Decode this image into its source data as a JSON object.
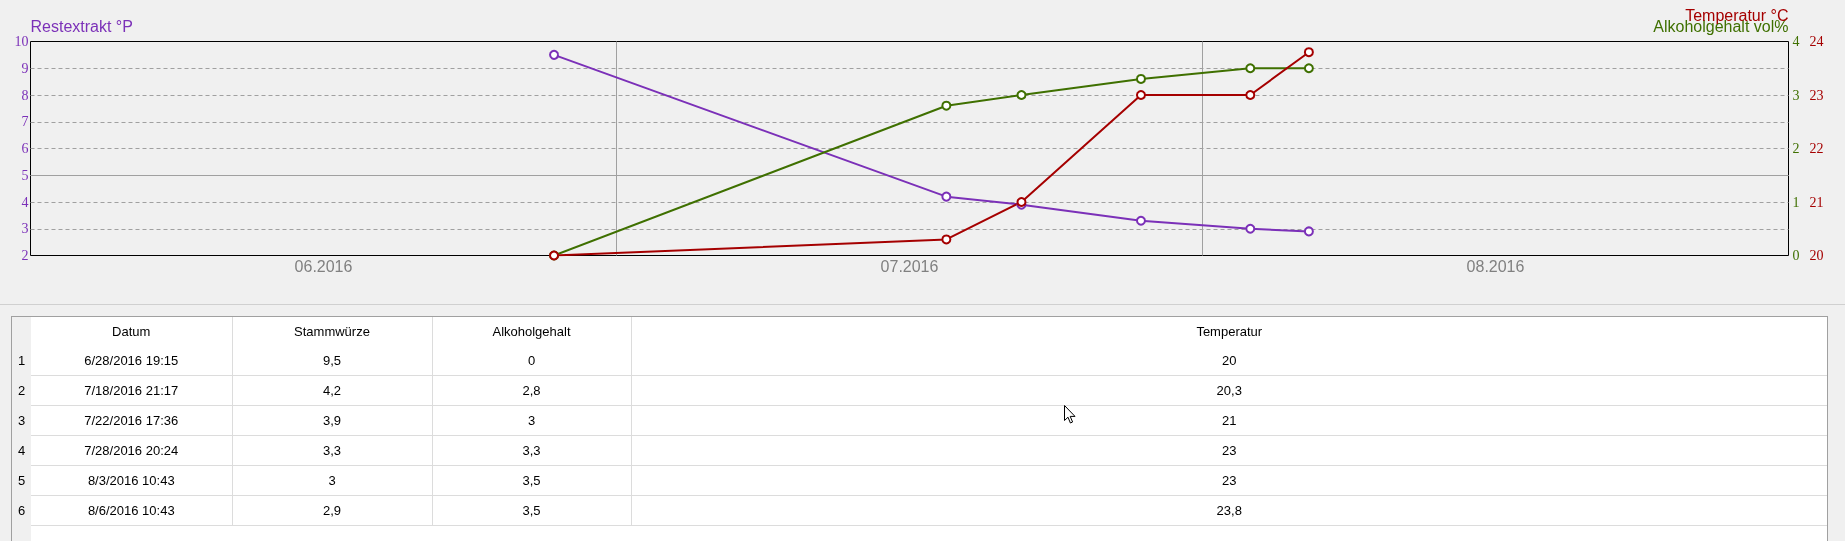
{
  "chart_data": {
    "type": "line",
    "x": [
      "2016-06-28T19:15",
      "2016-07-18T21:17",
      "2016-07-22T17:36",
      "2016-07-28T20:24",
      "2016-08-03T10:43",
      "2016-08-06T10:43"
    ],
    "xlabel": "Datum",
    "ylabel": "Restextrakt °P",
    "y2label": "Alkoholgehalt vol%",
    "y3label": "Temperatur °C",
    "xlim": [
      "2016-06-02",
      "2016-08-31"
    ],
    "xticks": [
      {
        "value": "2016-06-17",
        "label": "06.2016"
      },
      {
        "value": "2016-07-17",
        "label": "07.2016"
      },
      {
        "value": "2016-08-16",
        "label": "08.2016"
      }
    ],
    "ylim": [
      2,
      10
    ],
    "yticks": [
      2,
      3,
      4,
      5,
      6,
      7,
      8,
      9,
      10
    ],
    "y2lim": [
      0,
      4
    ],
    "y2ticks": [
      0,
      1,
      2,
      3,
      4
    ],
    "y3lim": [
      20,
      24
    ],
    "y3ticks": [
      20,
      21,
      22,
      23,
      24
    ],
    "series": [
      {
        "color": "#7b30b8",
        "values": [
          9.5,
          4.2,
          3.9,
          3.3,
          3,
          2.9
        ]
      },
      {
        "color": "#3f7000",
        "axis": "y2",
        "values": [
          0,
          2.8,
          3,
          3.3,
          3.5,
          3.5
        ]
      },
      {
        "color": "#a50000",
        "axis": "y3",
        "values": [
          20,
          20.3,
          21,
          23,
          23,
          23.8
        ]
      }
    ],
    "annotations": [
      "Stammwürze",
      "Alkoholgehalt",
      "Temperatur",
      "1",
      "6/28/2016 19:15",
      "9,5",
      "0",
      "20",
      "2",
      "7/18/2016 21:17",
      "4,2",
      "2,8",
      "20,3",
      "3",
      "7/22/2016 17:36",
      "3,9",
      "3",
      "21",
      "4",
      "7/28/2016 20:24",
      "3,3",
      "3,3",
      "23",
      "5",
      "8/3/2016 10:43",
      "3",
      "3,5",
      "23",
      "6",
      "8/6/2016 10:43",
      "2,9",
      "3,5",
      "23,8"
    ],
    "grid": "y",
    "marker": "circle",
    "line_style": "solid",
    "ref_lines": [
      {
        "axis": "x",
        "value": "2016-07-02",
        "color": "#a0a0a0"
      },
      {
        "axis": "x",
        "value": "2016-08-01",
        "color": "#a0a0a0"
      },
      {
        "axis": "y",
        "value": 5,
        "color": "#a0a0a0"
      }
    ]
  }
}
